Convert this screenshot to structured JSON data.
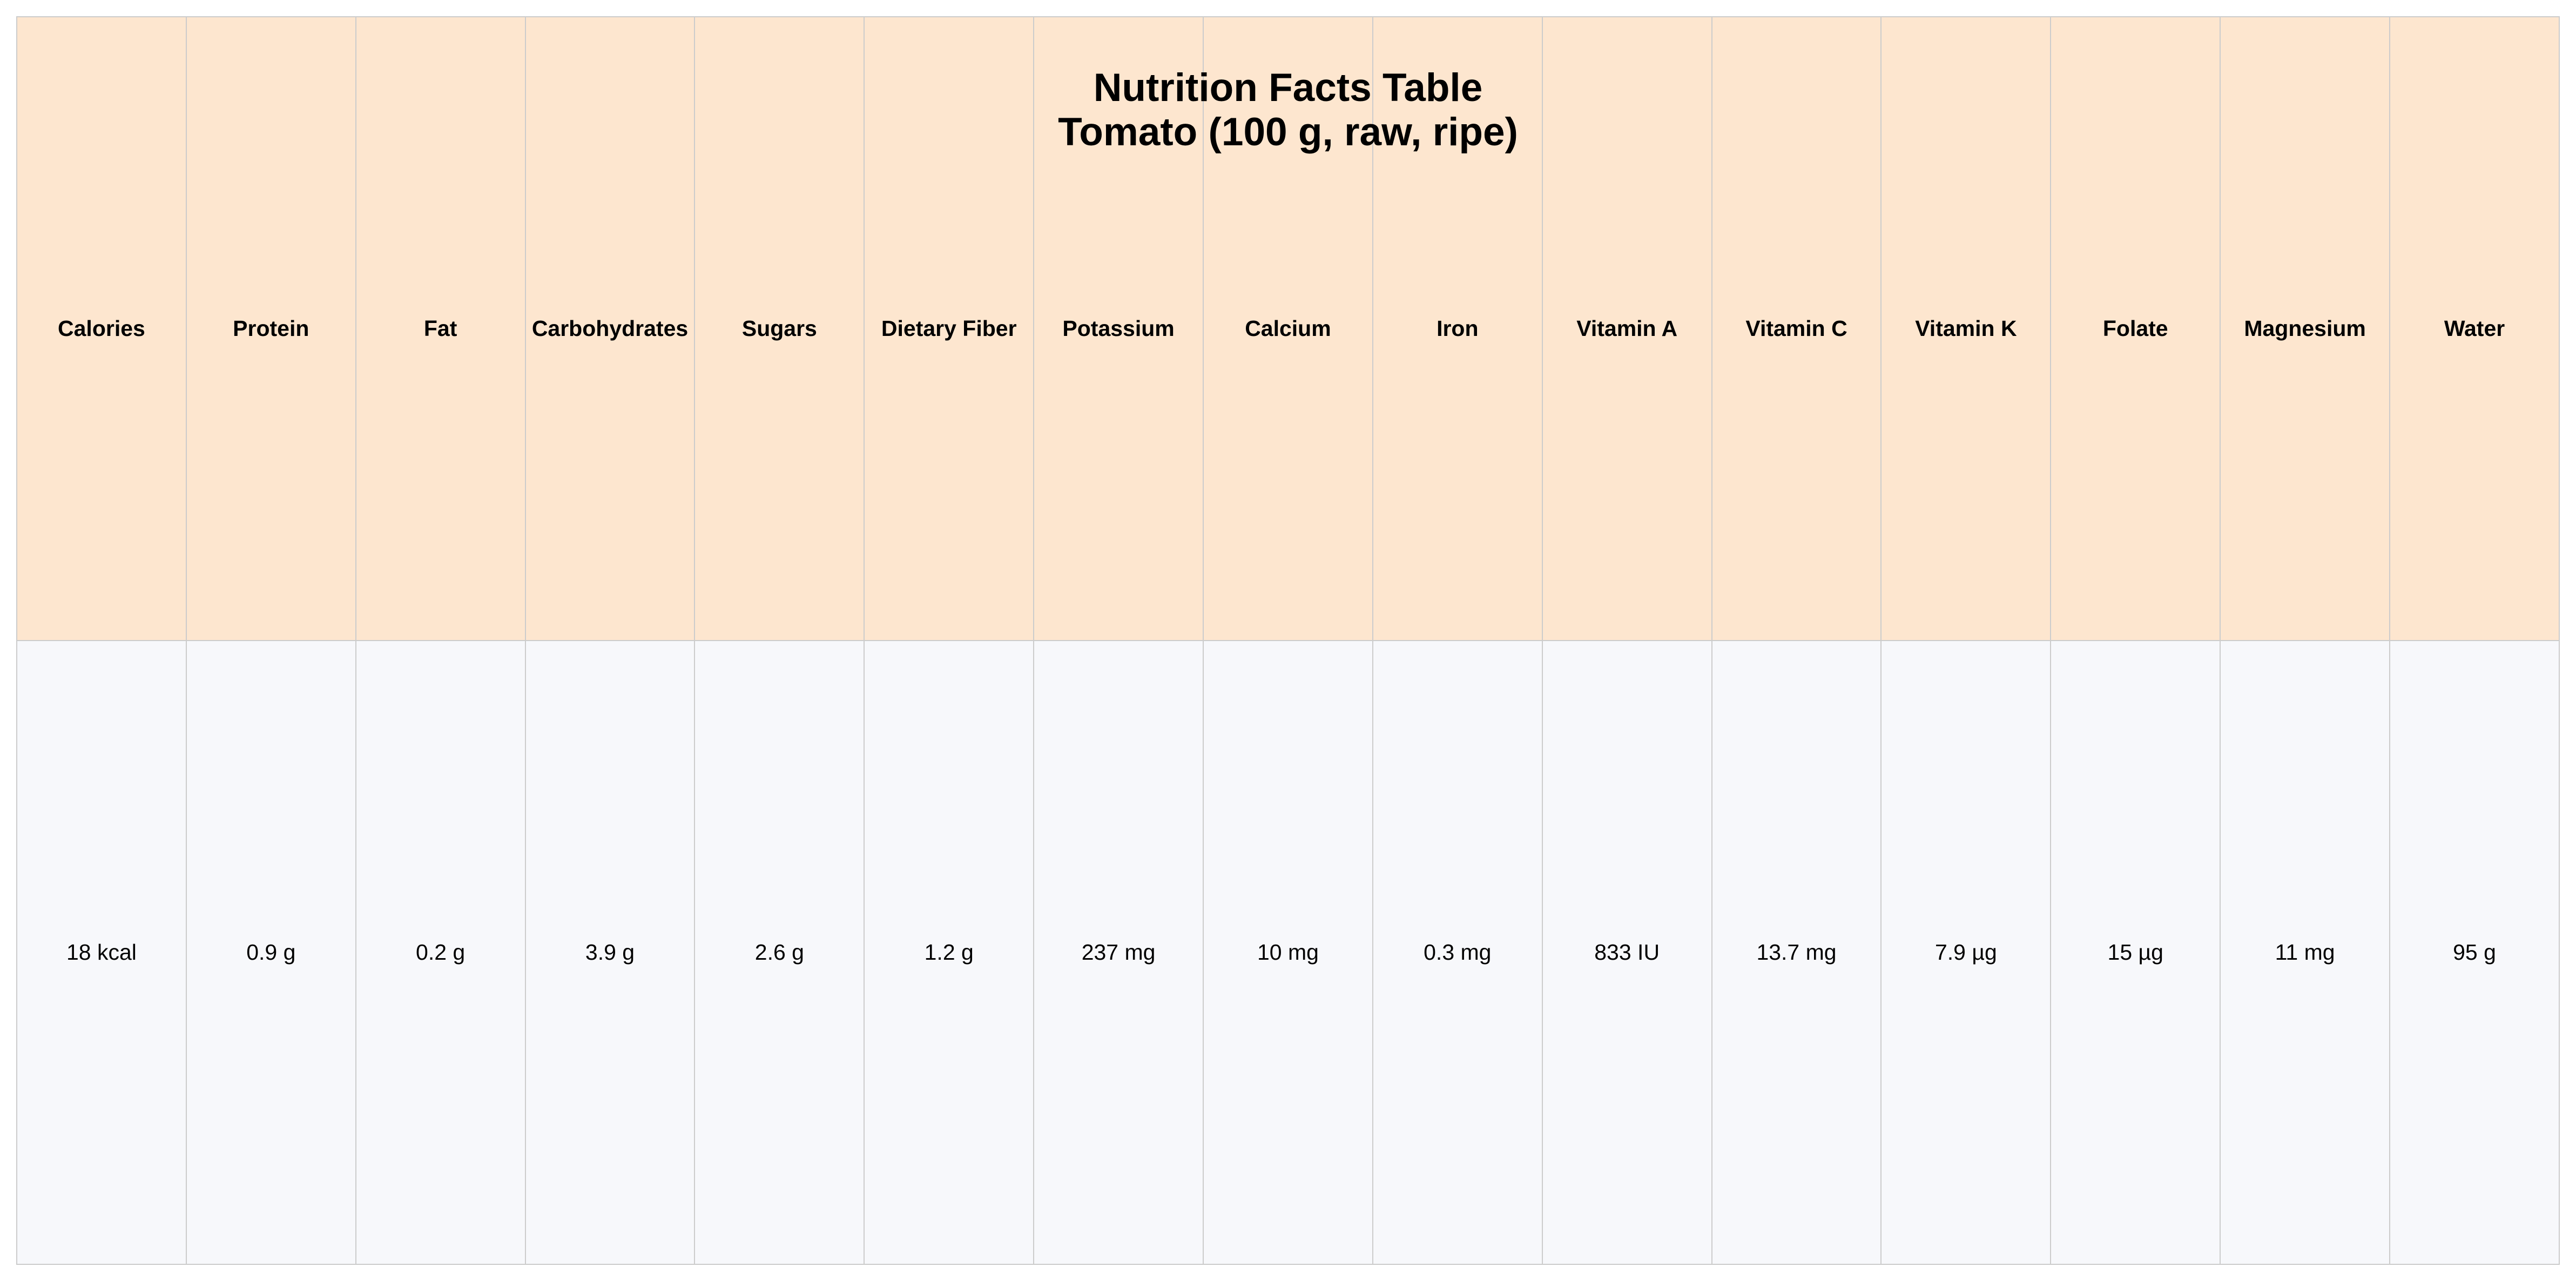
{
  "chart_data": {
    "type": "table",
    "title": "Nutrition Facts Table",
    "subtitle": "Tomato (100 g, raw, ripe)",
    "columns": [
      "Calories",
      "Protein",
      "Fat",
      "Carbohydrates",
      "Sugars",
      "Dietary Fiber",
      "Potassium",
      "Calcium",
      "Iron",
      "Vitamin A",
      "Vitamin C",
      "Vitamin K",
      "Folate",
      "Magnesium",
      "Water"
    ],
    "rows": [
      [
        "18 kcal",
        "0.9 g",
        "0.2 g",
        "3.9 g",
        "2.6 g",
        "1.2 g",
        "237 mg",
        "10 mg",
        "0.3 mg",
        "833 IU",
        "13.7 mg",
        "7.9 µg",
        "15 µg",
        "11 mg",
        "95 g"
      ]
    ]
  },
  "colors": {
    "header_fill": "#fde6cf",
    "cell_fill": "#f7f8fb",
    "border": "#cccccc",
    "text": "#000000"
  }
}
